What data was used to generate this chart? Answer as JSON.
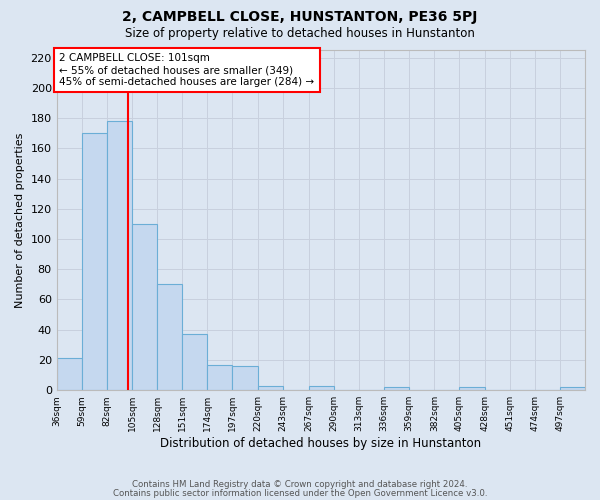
{
  "title": "2, CAMPBELL CLOSE, HUNSTANTON, PE36 5PJ",
  "subtitle": "Size of property relative to detached houses in Hunstanton",
  "xlabel": "Distribution of detached houses by size in Hunstanton",
  "ylabel": "Number of detached properties",
  "footnote1": "Contains HM Land Registry data © Crown copyright and database right 2024.",
  "footnote2": "Contains public sector information licensed under the Open Government Licence v3.0.",
  "bin_edges": [
    36,
    59,
    82,
    105,
    128,
    151,
    174,
    197,
    220,
    243,
    267,
    290,
    313,
    336,
    359,
    382,
    405,
    428,
    451,
    474,
    497,
    520
  ],
  "bar_heights": [
    21,
    170,
    178,
    110,
    70,
    37,
    17,
    16,
    3,
    0,
    3,
    0,
    0,
    2,
    0,
    0,
    2,
    0,
    0,
    0,
    2
  ],
  "bar_color": "#c5d8ef",
  "bar_edge_color": "#6baed6",
  "bar_linewidth": 0.8,
  "grid_color": "#c8d0de",
  "background_color": "#dce6f2",
  "red_line_x": 101,
  "annotation_text_line1": "2 CAMPBELL CLOSE: 101sqm",
  "annotation_text_line2": "← 55% of detached houses are smaller (349)",
  "annotation_text_line3": "45% of semi-detached houses are larger (284) →",
  "annotation_box_color": "white",
  "annotation_box_edge_color": "red",
  "ylim": [
    0,
    225
  ],
  "yticks": [
    0,
    20,
    40,
    60,
    80,
    100,
    120,
    140,
    160,
    180,
    200,
    220
  ],
  "tick_labels": [
    "36sqm",
    "59sqm",
    "82sqm",
    "105sqm",
    "128sqm",
    "151sqm",
    "174sqm",
    "197sqm",
    "220sqm",
    "243sqm",
    "267sqm",
    "290sqm",
    "313sqm",
    "336sqm",
    "359sqm",
    "382sqm",
    "405sqm",
    "428sqm",
    "451sqm",
    "474sqm",
    "497sqm"
  ]
}
